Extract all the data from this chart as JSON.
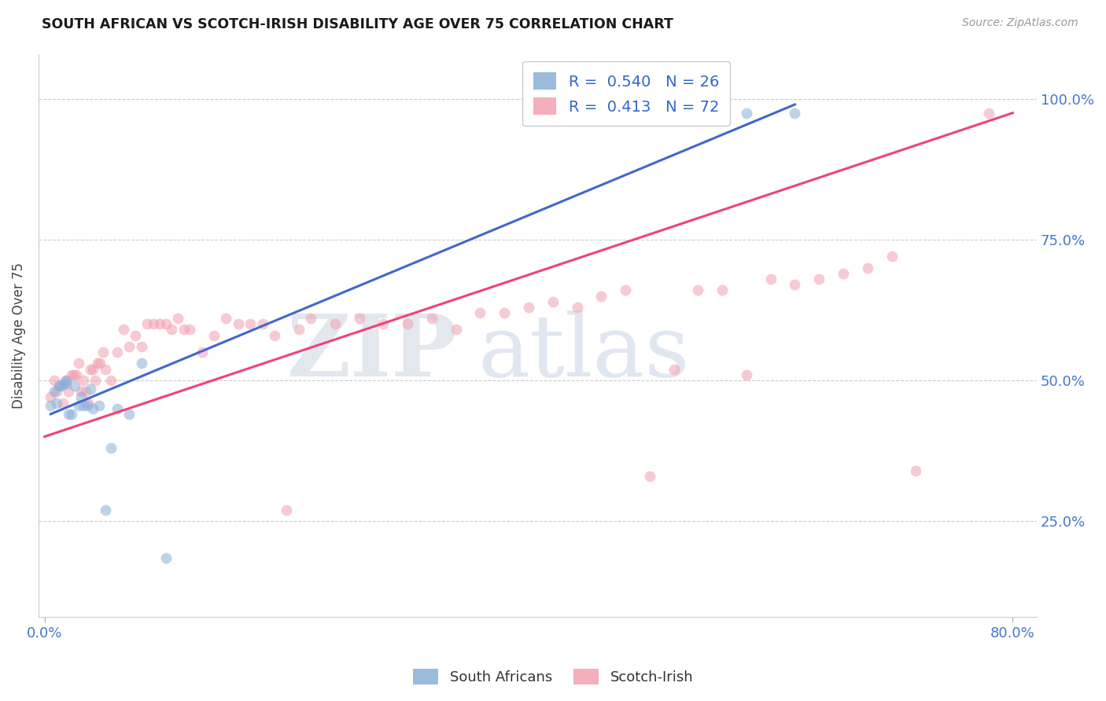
{
  "title": "SOUTH AFRICAN VS SCOTCH-IRISH DISABILITY AGE OVER 75 CORRELATION CHART",
  "source": "Source: ZipAtlas.com",
  "ylabel": "Disability Age Over 75",
  "ytick_labels": [
    "25.0%",
    "50.0%",
    "75.0%",
    "100.0%"
  ],
  "ytick_positions": [
    0.25,
    0.5,
    0.75,
    1.0
  ],
  "xlim": [
    -0.005,
    0.82
  ],
  "ylim": [
    0.08,
    1.08
  ],
  "blue_color": "#8ab0d8",
  "pink_color": "#f4a0b0",
  "blue_line_color": "#4466cc",
  "pink_line_color": "#ee4477",
  "legend_blue_label": "R =  0.540   N = 26",
  "legend_pink_label": "R =  0.413   N = 72",
  "south_african_label": "South Africans",
  "scotch_irish_label": "Scotch-Irish",
  "marker_size": 100,
  "marker_alpha": 0.55,
  "sa_x": [
    0.005,
    0.008,
    0.01,
    0.012,
    0.014,
    0.016,
    0.018,
    0.018,
    0.02,
    0.022,
    0.025,
    0.028,
    0.03,
    0.032,
    0.035,
    0.038,
    0.04,
    0.045,
    0.05,
    0.055,
    0.06,
    0.07,
    0.08,
    0.1,
    0.58,
    0.62
  ],
  "sa_y": [
    0.455,
    0.48,
    0.46,
    0.49,
    0.49,
    0.495,
    0.5,
    0.495,
    0.44,
    0.44,
    0.49,
    0.455,
    0.47,
    0.455,
    0.455,
    0.485,
    0.45,
    0.455,
    0.27,
    0.38,
    0.45,
    0.44,
    0.53,
    0.185,
    0.975,
    0.975
  ],
  "si_x": [
    0.005,
    0.008,
    0.01,
    0.012,
    0.015,
    0.018,
    0.02,
    0.022,
    0.024,
    0.026,
    0.028,
    0.03,
    0.032,
    0.034,
    0.036,
    0.038,
    0.04,
    0.042,
    0.044,
    0.046,
    0.048,
    0.05,
    0.055,
    0.06,
    0.065,
    0.07,
    0.075,
    0.08,
    0.085,
    0.09,
    0.095,
    0.1,
    0.105,
    0.11,
    0.115,
    0.12,
    0.13,
    0.14,
    0.15,
    0.16,
    0.17,
    0.18,
    0.19,
    0.2,
    0.21,
    0.22,
    0.24,
    0.26,
    0.28,
    0.3,
    0.32,
    0.34,
    0.36,
    0.38,
    0.4,
    0.42,
    0.44,
    0.46,
    0.48,
    0.5,
    0.52,
    0.54,
    0.56,
    0.58,
    0.6,
    0.62,
    0.64,
    0.66,
    0.68,
    0.7,
    0.72,
    0.78
  ],
  "si_y": [
    0.47,
    0.5,
    0.48,
    0.49,
    0.46,
    0.5,
    0.48,
    0.51,
    0.51,
    0.51,
    0.53,
    0.48,
    0.5,
    0.48,
    0.46,
    0.52,
    0.52,
    0.5,
    0.53,
    0.53,
    0.55,
    0.52,
    0.5,
    0.55,
    0.59,
    0.56,
    0.58,
    0.56,
    0.6,
    0.6,
    0.6,
    0.6,
    0.59,
    0.61,
    0.59,
    0.59,
    0.55,
    0.58,
    0.61,
    0.6,
    0.6,
    0.6,
    0.58,
    0.27,
    0.59,
    0.61,
    0.6,
    0.61,
    0.6,
    0.6,
    0.61,
    0.59,
    0.62,
    0.62,
    0.63,
    0.64,
    0.63,
    0.65,
    0.66,
    0.33,
    0.52,
    0.66,
    0.66,
    0.51,
    0.68,
    0.67,
    0.68,
    0.69,
    0.7,
    0.72,
    0.34,
    0.975
  ],
  "blue_trend_x": [
    0.005,
    0.62
  ],
  "blue_trend_y": [
    0.44,
    0.99
  ],
  "pink_trend_x": [
    0.0,
    0.8
  ],
  "pink_trend_y": [
    0.4,
    0.975
  ]
}
